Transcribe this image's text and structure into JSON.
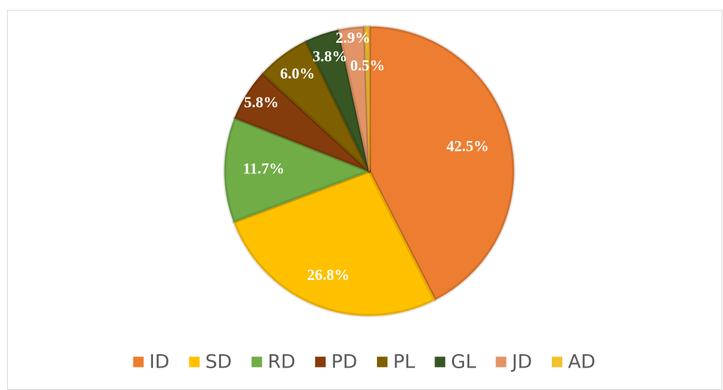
{
  "chart_data": {
    "type": "pie",
    "categories": [
      "ID",
      "SD",
      "RD",
      "PD",
      "PL",
      "GL",
      "JD",
      "AD"
    ],
    "values": [
      42.5,
      26.8,
      11.7,
      5.8,
      6.0,
      3.8,
      2.9,
      0.5
    ],
    "value_labels": [
      "42.5%",
      "26.8%",
      "11.7%",
      "5.8%",
      "6.0%",
      "3.8%",
      "2.9%",
      "0.5%"
    ],
    "colors": [
      "#ED7D31",
      "#FFC000",
      "#70AD47",
      "#843C0C",
      "#7F6000",
      "#375623",
      "#E39467",
      "#F2C12E"
    ],
    "legend": "bottom"
  }
}
